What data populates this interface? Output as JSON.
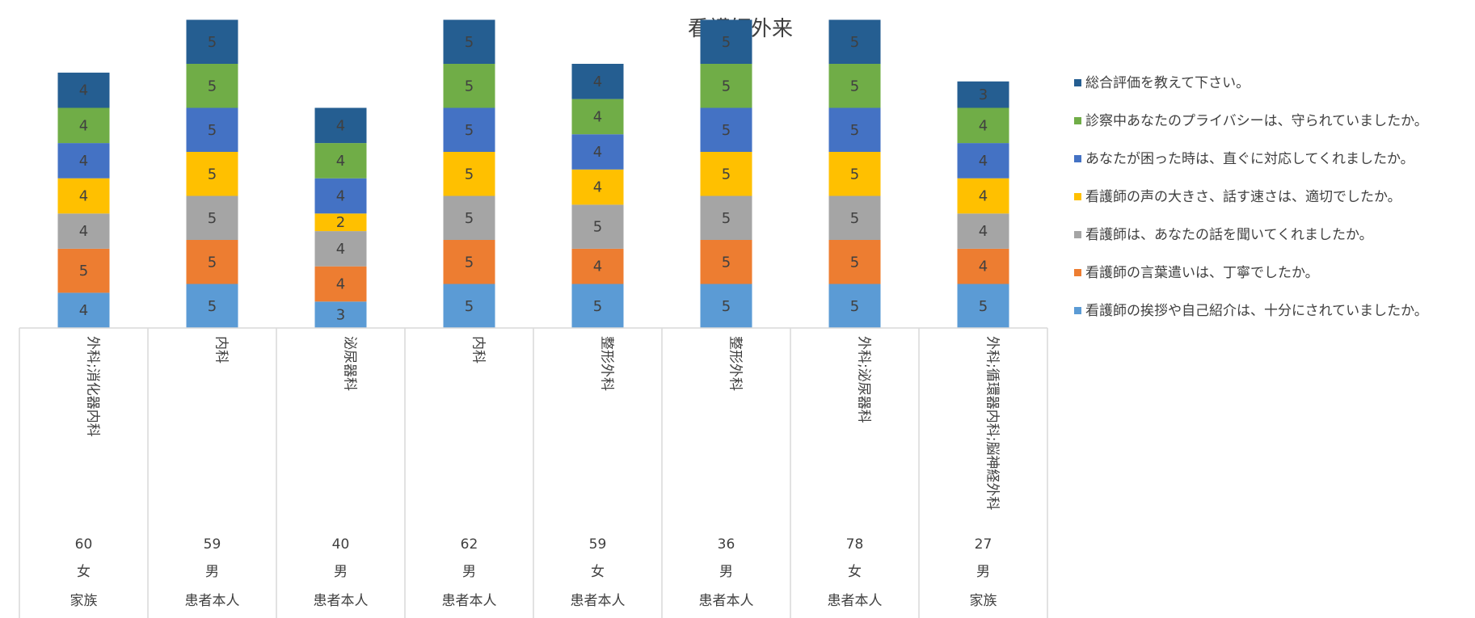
{
  "chart_data": {
    "type": "bar",
    "stacked": true,
    "title": "看護師外来",
    "series": [
      {
        "name": "看護師の挨拶や自己紹介は、十分にされていましたか。",
        "color": "#5b9bd5",
        "values": [
          4,
          5,
          3,
          5,
          5,
          5,
          5,
          5
        ]
      },
      {
        "name": "看護師の言葉遣いは、丁寧でしたか。",
        "color": "#ed7d31",
        "values": [
          5,
          5,
          4,
          5,
          4,
          5,
          5,
          4
        ]
      },
      {
        "name": "看護師は、あなたの話を聞いてくれましたか。",
        "color": "#a5a5a5",
        "values": [
          4,
          5,
          4,
          5,
          5,
          5,
          5,
          4
        ]
      },
      {
        "name": "看護師の声の大きさ、話す速さは、適切でしたか。",
        "color": "#ffc000",
        "values": [
          4,
          5,
          2,
          5,
          4,
          5,
          5,
          4
        ]
      },
      {
        "name": "あなたが困った時は、直ぐに対応してくれましたか。",
        "color": "#4472c4",
        "values": [
          4,
          5,
          4,
          5,
          4,
          5,
          5,
          4
        ]
      },
      {
        "name": "診察中あなたのプライバシーは、守られていましたか。",
        "color": "#70ad47",
        "values": [
          4,
          5,
          4,
          5,
          4,
          5,
          5,
          4
        ]
      },
      {
        "name": "総合評価を教えて下さい。",
        "color": "#255e91",
        "values": [
          4,
          5,
          4,
          5,
          4,
          5,
          5,
          3
        ]
      }
    ],
    "categories": [
      {
        "dept": "外科;消化器内科",
        "age": "60",
        "sex": "女",
        "respondent": "家族"
      },
      {
        "dept": "内科",
        "age": "59",
        "sex": "男",
        "respondent": "患者本人"
      },
      {
        "dept": "泌尿器科",
        "age": "40",
        "sex": "男",
        "respondent": "患者本人"
      },
      {
        "dept": "内科",
        "age": "62",
        "sex": "男",
        "respondent": "患者本人"
      },
      {
        "dept": "整形外科",
        "age": "59",
        "sex": "女",
        "respondent": "患者本人"
      },
      {
        "dept": "整形外科",
        "age": "36",
        "sex": "男",
        "respondent": "患者本人"
      },
      {
        "dept": "外科;泌尿器科",
        "age": "78",
        "sex": "女",
        "respondent": "患者本人"
      },
      {
        "dept": "外科;循環器内科;脳神経外科",
        "age": "27",
        "sex": "男",
        "respondent": "家族"
      }
    ],
    "legend_position": "right",
    "grid": false
  }
}
